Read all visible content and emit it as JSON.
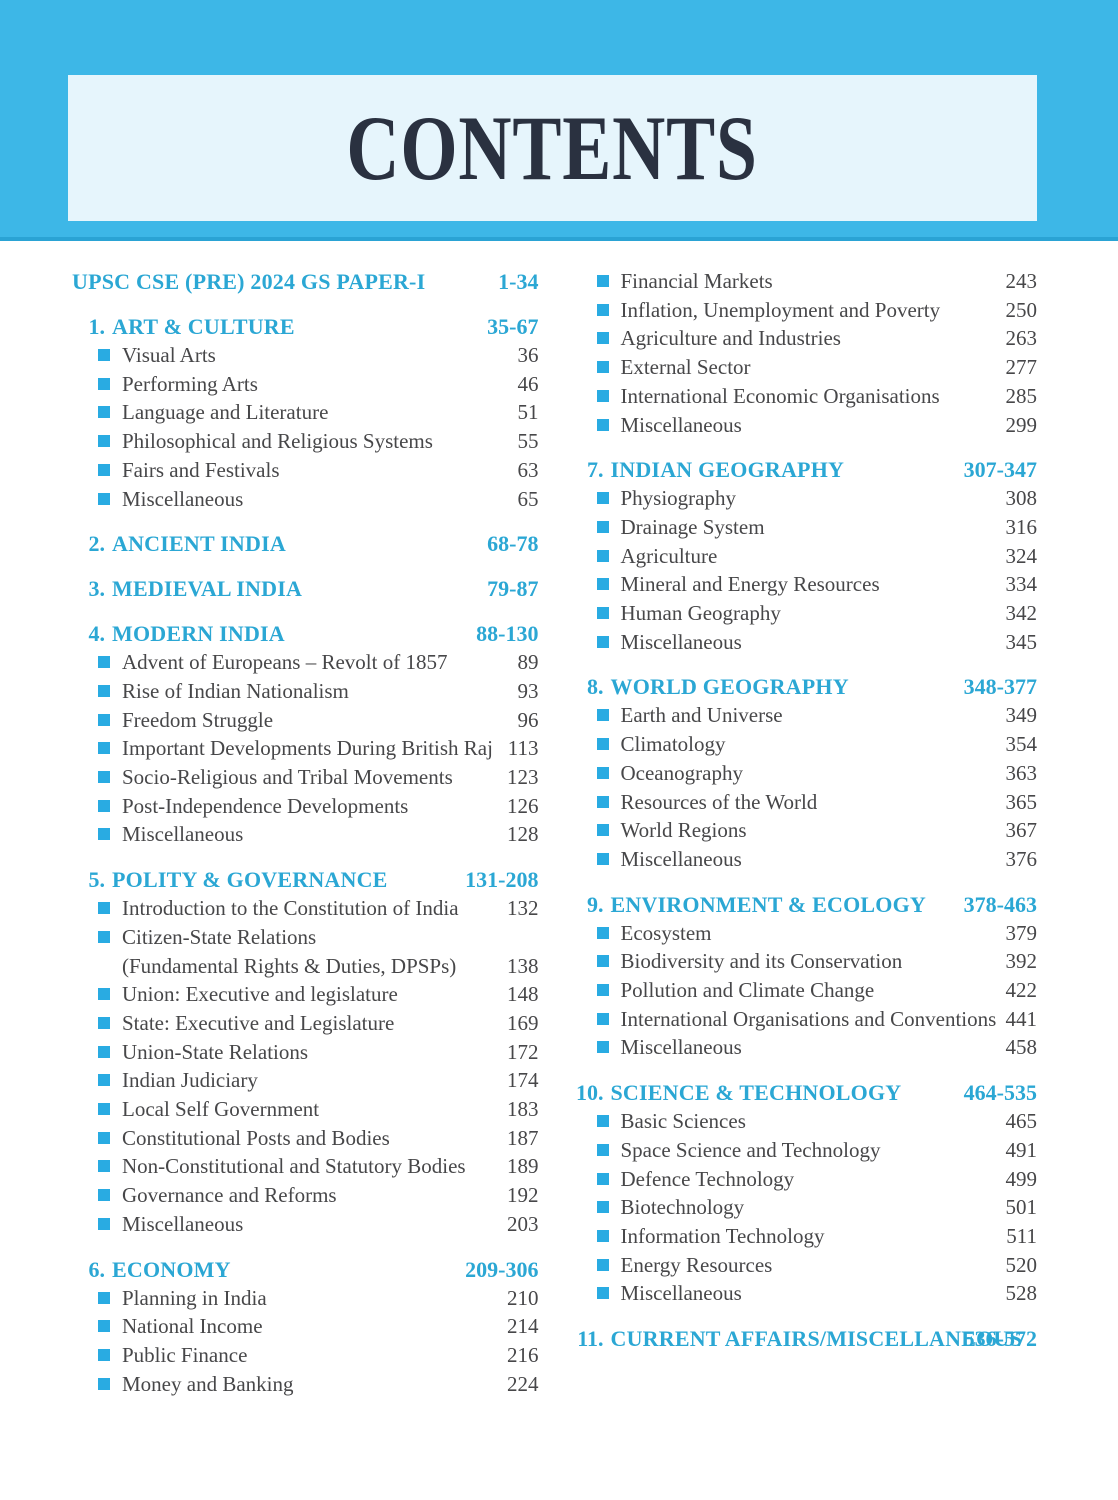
{
  "header": {
    "title": "CONTENTS"
  },
  "colors": {
    "band_blue": "#3db7e7",
    "band_edge_blue": "#2aa3d4",
    "panel_light_blue": "#e6f5fc",
    "title_navy": "#2a3140",
    "heading_cyan": "#2ba7d4",
    "bullet_cyan": "#29abe2",
    "body_text": "#474749",
    "page_background": "#ffffff"
  },
  "columns": [
    {
      "side": "left",
      "sections": [
        {
          "number": "",
          "title": "UPSC CSE (PRE) 2024 GS PAPER-I",
          "pages": "1-34",
          "items": []
        },
        {
          "number": "1.",
          "title": "ART & CULTURE",
          "pages": "35-67",
          "items": [
            {
              "label": "Visual Arts",
              "page": "36"
            },
            {
              "label": "Performing Arts",
              "page": "46"
            },
            {
              "label": "Language and Literature",
              "page": "51"
            },
            {
              "label": "Philosophical and Religious Systems",
              "page": "55"
            },
            {
              "label": "Fairs and Festivals",
              "page": "63"
            },
            {
              "label": "Miscellaneous",
              "page": "65"
            }
          ]
        },
        {
          "number": "2.",
          "title": "ANCIENT INDIA",
          "pages": "68-78",
          "items": []
        },
        {
          "number": "3.",
          "title": "MEDIEVAL INDIA",
          "pages": "79-87",
          "items": []
        },
        {
          "number": "4.",
          "title": "MODERN INDIA",
          "pages": "88-130",
          "items": [
            {
              "label": "Advent of Europeans – Revolt of 1857",
              "page": "89"
            },
            {
              "label": "Rise of Indian Nationalism",
              "page": "93"
            },
            {
              "label": "Freedom Struggle",
              "page": "96"
            },
            {
              "label": "Important Developments During British Raj",
              "page": "113"
            },
            {
              "label": "Socio-Religious and Tribal Movements",
              "page": "123"
            },
            {
              "label": "Post-Independence Developments",
              "page": "126"
            },
            {
              "label": "Miscellaneous",
              "page": "128"
            }
          ]
        },
        {
          "number": "5.",
          "title": "POLITY & GOVERNANCE",
          "pages": "131-208",
          "items": [
            {
              "label": "Introduction to the Constitution of India",
              "page": "132"
            },
            {
              "label": "Citizen-State Relations",
              "label2": "(Fundamental Rights & Duties, DPSPs)",
              "page": "138"
            },
            {
              "label": "Union: Executive and legislature",
              "page": "148"
            },
            {
              "label": "State: Executive and Legislature",
              "page": "169"
            },
            {
              "label": "Union-State Relations",
              "page": "172"
            },
            {
              "label": "Indian Judiciary",
              "page": "174"
            },
            {
              "label": "Local Self Government",
              "page": "183"
            },
            {
              "label": "Constitutional Posts and Bodies",
              "page": "187"
            },
            {
              "label": "Non-Constitutional and Statutory Bodies",
              "page": "189"
            },
            {
              "label": "Governance and Reforms",
              "page": "192"
            },
            {
              "label": "Miscellaneous",
              "page": "203"
            }
          ]
        },
        {
          "number": "6.",
          "title": "ECONOMY",
          "pages": "209-306",
          "items": [
            {
              "label": "Planning in India",
              "page": "210"
            },
            {
              "label": "National Income",
              "page": "214"
            },
            {
              "label": "Public Finance",
              "page": "216"
            },
            {
              "label": "Money and Banking",
              "page": "224"
            }
          ]
        }
      ]
    },
    {
      "side": "right",
      "sections": [
        {
          "number": "",
          "title": "",
          "pages": "",
          "items": [
            {
              "label": "Financial Markets",
              "page": "243"
            },
            {
              "label": "Inflation, Unemployment and Poverty",
              "page": "250"
            },
            {
              "label": "Agriculture and Industries",
              "page": "263"
            },
            {
              "label": "External Sector",
              "page": "277"
            },
            {
              "label": "International Economic Organisations",
              "page": "285"
            },
            {
              "label": "Miscellaneous",
              "page": "299"
            }
          ]
        },
        {
          "number": "7.",
          "title": "INDIAN GEOGRAPHY",
          "pages": "307-347",
          "items": [
            {
              "label": "Physiography",
              "page": "308"
            },
            {
              "label": "Drainage System",
              "page": "316"
            },
            {
              "label": "Agriculture",
              "page": "324"
            },
            {
              "label": "Mineral and Energy Resources",
              "page": "334"
            },
            {
              "label": "Human Geography",
              "page": "342"
            },
            {
              "label": "Miscellaneous",
              "page": "345"
            }
          ]
        },
        {
          "number": "8.",
          "title": "WORLD GEOGRAPHY",
          "pages": "348-377",
          "items": [
            {
              "label": "Earth and Universe",
              "page": "349"
            },
            {
              "label": "Climatology",
              "page": "354"
            },
            {
              "label": "Oceanography",
              "page": "363"
            },
            {
              "label": "Resources of the World",
              "page": "365"
            },
            {
              "label": "World Regions",
              "page": "367"
            },
            {
              "label": "Miscellaneous",
              "page": "376"
            }
          ]
        },
        {
          "number": "9.",
          "title": "ENVIRONMENT & ECOLOGY",
          "pages": "378-463",
          "items": [
            {
              "label": "Ecosystem",
              "page": "379"
            },
            {
              "label": "Biodiversity and its Conservation",
              "page": "392"
            },
            {
              "label": "Pollution and Climate Change",
              "page": "422"
            },
            {
              "label": "International Organisations and Conventions",
              "page": "441"
            },
            {
              "label": "Miscellaneous",
              "page": "458"
            }
          ]
        },
        {
          "number": "10.",
          "title": "SCIENCE & TECHNOLOGY",
          "pages": "464-535",
          "items": [
            {
              "label": "Basic Sciences",
              "page": "465"
            },
            {
              "label": "Space Science and Technology",
              "page": "491"
            },
            {
              "label": "Defence Technology",
              "page": "499"
            },
            {
              "label": "Biotechnology",
              "page": "501"
            },
            {
              "label": "Information Technology",
              "page": "511"
            },
            {
              "label": "Energy Resources",
              "page": "520"
            },
            {
              "label": "Miscellaneous",
              "page": "528"
            }
          ]
        },
        {
          "number": "11.",
          "title": "CURRENT AFFAIRS/MISCELLANEOUS",
          "pages": "536-572",
          "items": []
        }
      ]
    }
  ]
}
